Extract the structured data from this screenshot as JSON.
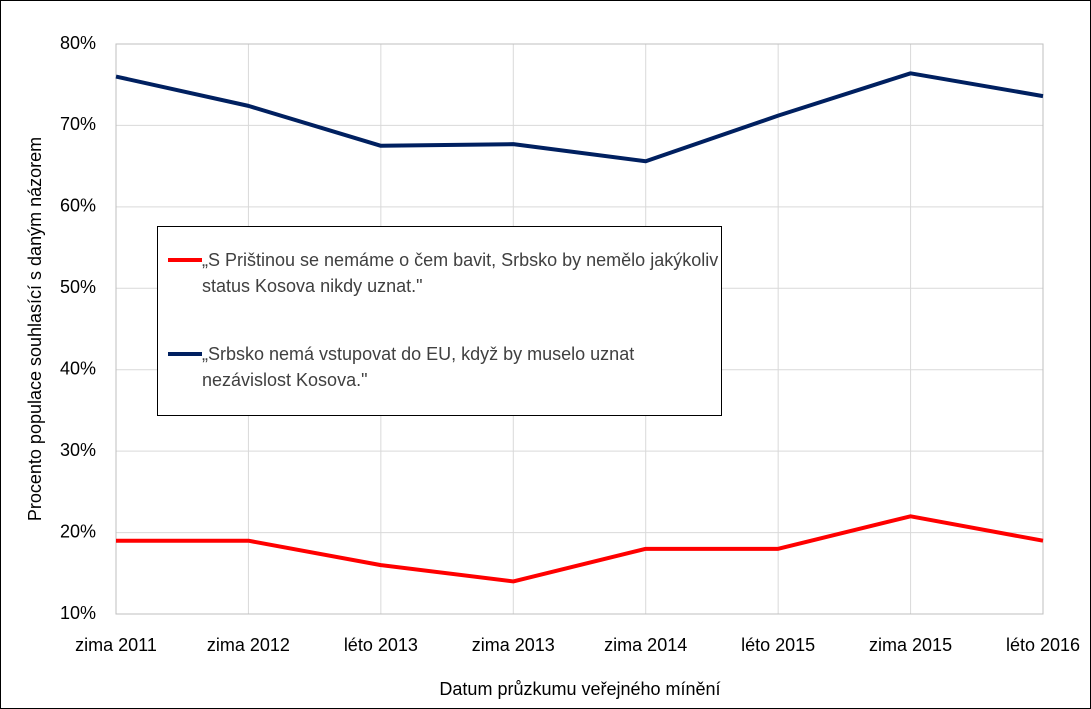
{
  "chart_data": {
    "type": "line",
    "x_label": "Datum průzkumu veřejného mínění",
    "y_label": "Procento populace souhlasící s daným názorem",
    "categories": [
      "zima 2011",
      "zima 2012",
      "léto 2013",
      "zima 2013",
      "zima 2014",
      "léto 2015",
      "zima 2015",
      "léto 2016"
    ],
    "series": [
      {
        "name": "„S Prištinou se nemáme o čem bavit, Srbsko by nemělo jakýkoliv status Kosova nikdy uznat.\"",
        "color": "#ff0000",
        "values": [
          19,
          19,
          16,
          14,
          18,
          18,
          22,
          19
        ]
      },
      {
        "name": "„Srbsko nemá vstupovat do EU, když by muselo uznat nezávislost Kosova.\"",
        "color": "#002060",
        "values": [
          76,
          72.4,
          67.5,
          67.7,
          65.6,
          71.2,
          76.4,
          73.6
        ]
      }
    ],
    "ylim": [
      10,
      80
    ],
    "yticks": [
      {
        "value": 10,
        "label": "10%"
      },
      {
        "value": 20,
        "label": "20%"
      },
      {
        "value": 30,
        "label": "30%"
      },
      {
        "value": 40,
        "label": "40%"
      },
      {
        "value": 50,
        "label": "50%"
      },
      {
        "value": 60,
        "label": "60%"
      },
      {
        "value": 70,
        "label": "70%"
      },
      {
        "value": 80,
        "label": "80%"
      }
    ],
    "grid": true
  }
}
